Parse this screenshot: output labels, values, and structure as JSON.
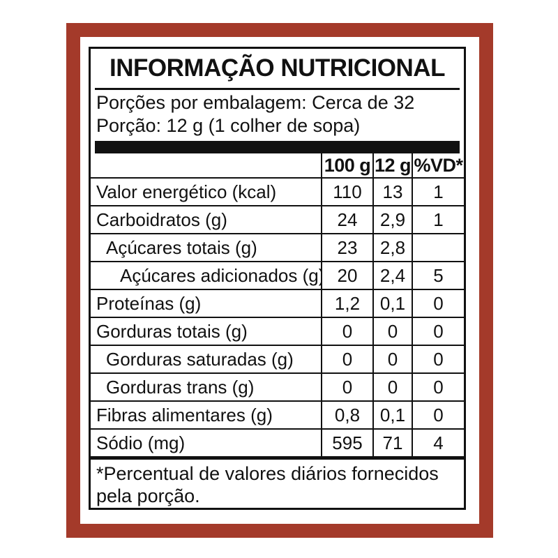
{
  "label": {
    "title": "INFORMAÇÃO NUTRICIONAL",
    "servings_per_package": "Porções por embalagem: Cerca de 32",
    "portion": "Porção: 12 g (1 colher de sopa)",
    "columns": [
      "100 g",
      "12 g",
      "%VD*"
    ],
    "rows": [
      {
        "name": "Valor energético (kcal)",
        "indent": 0,
        "per100g": "110",
        "per12g": "13",
        "vd": "1"
      },
      {
        "name": "Carboidratos (g)",
        "indent": 0,
        "per100g": "24",
        "per12g": "2,9",
        "vd": "1"
      },
      {
        "name": "Açúcares totais (g)",
        "indent": 1,
        "per100g": "23",
        "per12g": "2,8",
        "vd": ""
      },
      {
        "name": "Açúcares adicionados (g)",
        "indent": 2,
        "per100g": "20",
        "per12g": "2,4",
        "vd": "5"
      },
      {
        "name": "Proteínas (g)",
        "indent": 0,
        "per100g": "1,2",
        "per12g": "0,1",
        "vd": "0"
      },
      {
        "name": "Gorduras totais (g)",
        "indent": 0,
        "per100g": "0",
        "per12g": "0",
        "vd": "0"
      },
      {
        "name": "Gorduras saturadas (g)",
        "indent": 1,
        "per100g": "0",
        "per12g": "0",
        "vd": "0"
      },
      {
        "name": "Gorduras trans (g)",
        "indent": 1,
        "per100g": "0",
        "per12g": "0",
        "vd": "0"
      },
      {
        "name": "Fibras alimentares (g)",
        "indent": 0,
        "per100g": "0,8",
        "per12g": "0,1",
        "vd": "0"
      },
      {
        "name": "Sódio (mg)",
        "indent": 0,
        "per100g": "595",
        "per12g": "71",
        "vd": "4"
      }
    ],
    "footnote_line1": "*Percentual de valores diários fornecidos",
    "footnote_line2": "pela porção.",
    "colors": {
      "frame_red": "#A43A2A",
      "ink_black": "#111111"
    }
  }
}
